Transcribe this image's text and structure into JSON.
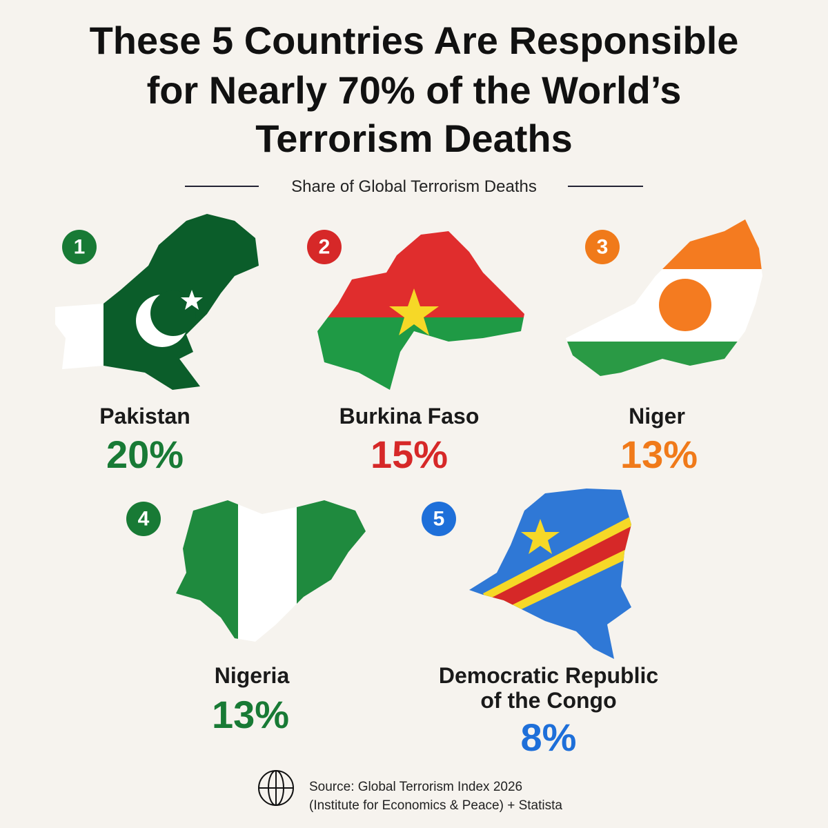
{
  "title": [
    "These 5 Countries Are Responsible",
    "for Nearly 70% of the World’s",
    "Terrorism Deaths"
  ],
  "subtitle": "Share of Global Terrorism Deaths",
  "countries": [
    {
      "rank": "1",
      "name": [
        "Pakistan"
      ],
      "share": "20%"
    },
    {
      "rank": "2",
      "name": [
        "Burkina Faso"
      ],
      "share": "15%"
    },
    {
      "rank": "3",
      "name": [
        "Niger"
      ],
      "share": "13%"
    },
    {
      "rank": "4",
      "name": [
        "Nigeria"
      ],
      "share": "13%"
    },
    {
      "rank": "5",
      "name": [
        "Democratic Republic",
        "of the Congo"
      ],
      "share": "8%"
    }
  ],
  "source": [
    "Source: Global Terrorism Index 2026",
    "(Institute for Economics & Peace) + Statista"
  ]
}
